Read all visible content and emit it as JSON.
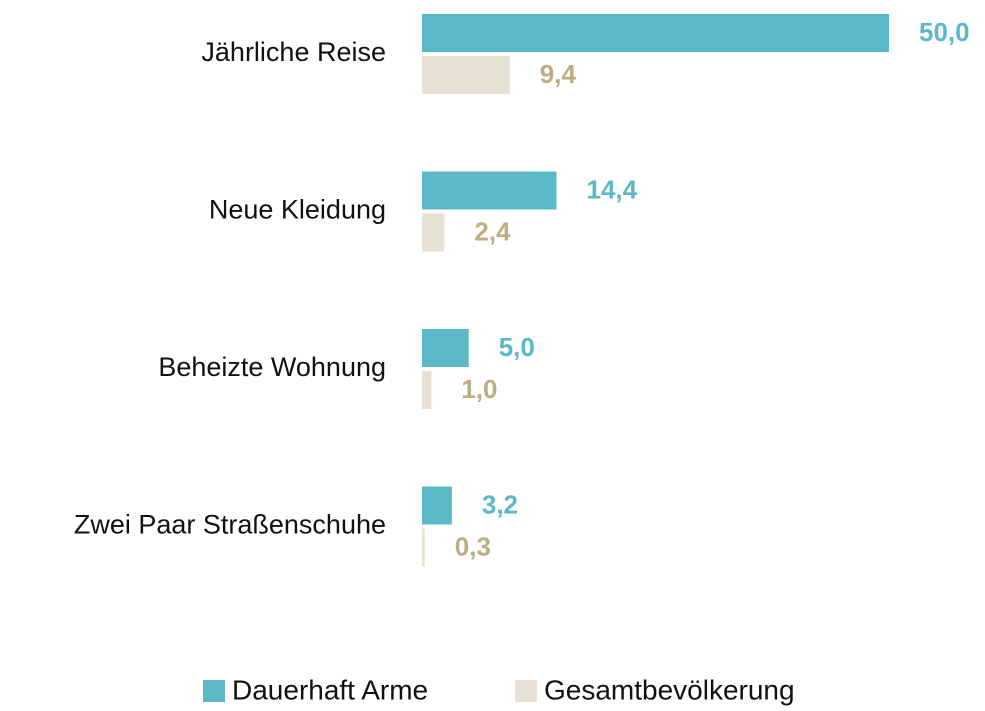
{
  "chart_data": {
    "type": "hbar",
    "categories": [
      "Jährliche Reise",
      "Neue Kleidung",
      "Beheizte Wohnung",
      "Zwei Paar Straßenschuhe"
    ],
    "series": [
      {
        "name": "Dauerhaft Arme",
        "color": "#5ab8c7",
        "label_color": "#5ab8c7",
        "values": [
          50.0,
          14.4,
          5.0,
          3.2
        ],
        "value_labels": [
          "50,0",
          "14,4",
          "5,0",
          "3,2"
        ]
      },
      {
        "name": "Gesamtbevölkerung",
        "color": "#e6e1d3",
        "label_color": "#bcae80",
        "values": [
          9.4,
          2.4,
          1.0,
          0.3
        ],
        "value_labels": [
          "9,4",
          "2,4",
          "1,0",
          "0,3"
        ]
      }
    ]
  }
}
